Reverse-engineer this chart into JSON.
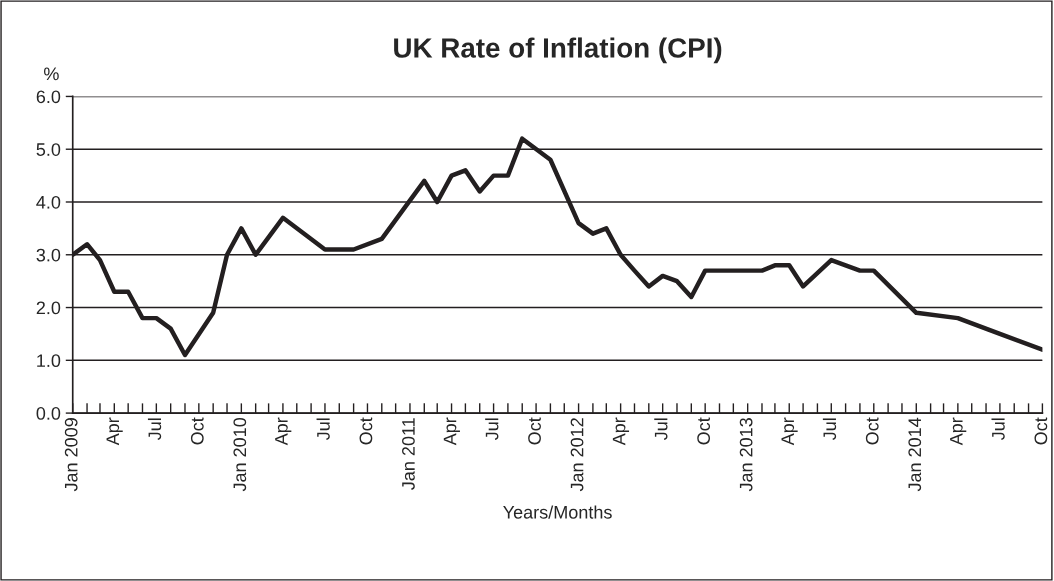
{
  "chart_data": {
    "type": "line",
    "title": "UK Rate of Inflation (CPI)",
    "xlabel": "Years/Months",
    "ylabel": "%",
    "x": [
      "2009-01",
      "2009-02",
      "2009-03",
      "2009-04",
      "2009-05",
      "2009-06",
      "2009-07",
      "2009-08",
      "2009-09",
      "2009-11",
      "2009-12",
      "2010-01",
      "2010-02",
      "2010-04",
      "2010-07",
      "2010-09",
      "2010-11",
      "2011-02",
      "2011-03",
      "2011-04",
      "2011-05",
      "2011-06",
      "2011-07",
      "2011-08",
      "2011-09",
      "2011-11",
      "2012-01",
      "2012-02",
      "2012-03",
      "2012-04",
      "2012-05",
      "2012-06",
      "2012-07",
      "2012-08",
      "2012-09",
      "2012-10",
      "2013-02",
      "2013-03",
      "2013-04",
      "2013-05",
      "2013-07",
      "2013-09",
      "2013-10",
      "2014-01",
      "2014-04",
      "2014-07",
      "2014-10"
    ],
    "series": [
      {
        "color": "#231f20",
        "values": [
          3.0,
          3.2,
          2.9,
          2.3,
          2.3,
          1.8,
          1.8,
          1.6,
          1.1,
          1.9,
          3.0,
          3.5,
          3.0,
          3.7,
          3.1,
          3.1,
          3.3,
          4.4,
          4.0,
          4.5,
          4.6,
          4.2,
          4.5,
          4.5,
          5.2,
          4.8,
          3.6,
          3.4,
          3.5,
          3.0,
          2.7,
          2.4,
          2.6,
          2.5,
          2.2,
          2.7,
          2.7,
          2.8,
          2.8,
          2.4,
          2.9,
          2.7,
          2.7,
          1.9,
          1.8,
          1.5,
          1.2
        ]
      }
    ],
    "xlim": [
      "2009-01",
      "2014-10"
    ],
    "xticks": [
      {
        "value": "2009-01",
        "label": "Jan 2009"
      },
      {
        "value": "2009-02",
        "label": null
      },
      {
        "value": "2009-03",
        "label": null
      },
      {
        "value": "2009-04",
        "label": "Apr"
      },
      {
        "value": "2009-05",
        "label": null
      },
      {
        "value": "2009-06",
        "label": null
      },
      {
        "value": "2009-07",
        "label": "Jul"
      },
      {
        "value": "2009-08",
        "label": null
      },
      {
        "value": "2009-09",
        "label": null
      },
      {
        "value": "2009-10",
        "label": "Oct"
      },
      {
        "value": "2009-11",
        "label": null
      },
      {
        "value": "2009-12",
        "label": null
      },
      {
        "value": "2010-01",
        "label": "Jan 2010"
      },
      {
        "value": "2010-02",
        "label": null
      },
      {
        "value": "2010-03",
        "label": null
      },
      {
        "value": "2010-04",
        "label": "Apr"
      },
      {
        "value": "2010-05",
        "label": null
      },
      {
        "value": "2010-06",
        "label": null
      },
      {
        "value": "2010-07",
        "label": "Jul"
      },
      {
        "value": "2010-08",
        "label": null
      },
      {
        "value": "2010-09",
        "label": null
      },
      {
        "value": "2010-10",
        "label": "Oct"
      },
      {
        "value": "2010-11",
        "label": null
      },
      {
        "value": "2010-12",
        "label": null
      },
      {
        "value": "2011-01",
        "label": "Jan 2011"
      },
      {
        "value": "2011-02",
        "label": null
      },
      {
        "value": "2011-03",
        "label": null
      },
      {
        "value": "2011-04",
        "label": "Apr"
      },
      {
        "value": "2011-05",
        "label": null
      },
      {
        "value": "2011-06",
        "label": null
      },
      {
        "value": "2011-07",
        "label": "Jul"
      },
      {
        "value": "2011-08",
        "label": null
      },
      {
        "value": "2011-09",
        "label": null
      },
      {
        "value": "2011-10",
        "label": "Oct"
      },
      {
        "value": "2011-11",
        "label": null
      },
      {
        "value": "2011-12",
        "label": null
      },
      {
        "value": "2012-01",
        "label": "Jan 2012"
      },
      {
        "value": "2012-02",
        "label": null
      },
      {
        "value": "2012-03",
        "label": null
      },
      {
        "value": "2012-04",
        "label": "Apr"
      },
      {
        "value": "2012-05",
        "label": null
      },
      {
        "value": "2012-06",
        "label": null
      },
      {
        "value": "2012-07",
        "label": "Jul"
      },
      {
        "value": "2012-08",
        "label": null
      },
      {
        "value": "2012-09",
        "label": null
      },
      {
        "value": "2012-10",
        "label": "Oct"
      },
      {
        "value": "2012-11",
        "label": null
      },
      {
        "value": "2012-12",
        "label": null
      },
      {
        "value": "2013-01",
        "label": "Jan 2013"
      },
      {
        "value": "2013-02",
        "label": null
      },
      {
        "value": "2013-03",
        "label": null
      },
      {
        "value": "2013-04",
        "label": "Apr"
      },
      {
        "value": "2013-05",
        "label": null
      },
      {
        "value": "2013-06",
        "label": null
      },
      {
        "value": "2013-07",
        "label": "Jul"
      },
      {
        "value": "2013-08",
        "label": null
      },
      {
        "value": "2013-09",
        "label": null
      },
      {
        "value": "2013-10",
        "label": "Oct"
      },
      {
        "value": "2013-11",
        "label": null
      },
      {
        "value": "2013-12",
        "label": null
      },
      {
        "value": "2014-01",
        "label": "Jan 2014"
      },
      {
        "value": "2014-02",
        "label": null
      },
      {
        "value": "2014-03",
        "label": null
      },
      {
        "value": "2014-04",
        "label": "Apr"
      },
      {
        "value": "2014-05",
        "label": null
      },
      {
        "value": "2014-06",
        "label": null
      },
      {
        "value": "2014-07",
        "label": "Jul"
      },
      {
        "value": "2014-08",
        "label": null
      },
      {
        "value": "2014-09",
        "label": null
      },
      {
        "value": "2014-10",
        "label": "Oct"
      }
    ],
    "ylim": [
      0,
      6
    ],
    "yticks": [
      {
        "value": 0,
        "label": "0.0"
      },
      {
        "value": 1,
        "label": "1.0"
      },
      {
        "value": 2,
        "label": "2.0"
      },
      {
        "value": 3,
        "label": "3.0"
      },
      {
        "value": 4,
        "label": "4.0"
      },
      {
        "value": 5,
        "label": "5.0"
      },
      {
        "value": 6,
        "label": "6.0"
      }
    ],
    "grid": "y",
    "legend": false,
    "marker": "none",
    "line_style": "solid"
  }
}
